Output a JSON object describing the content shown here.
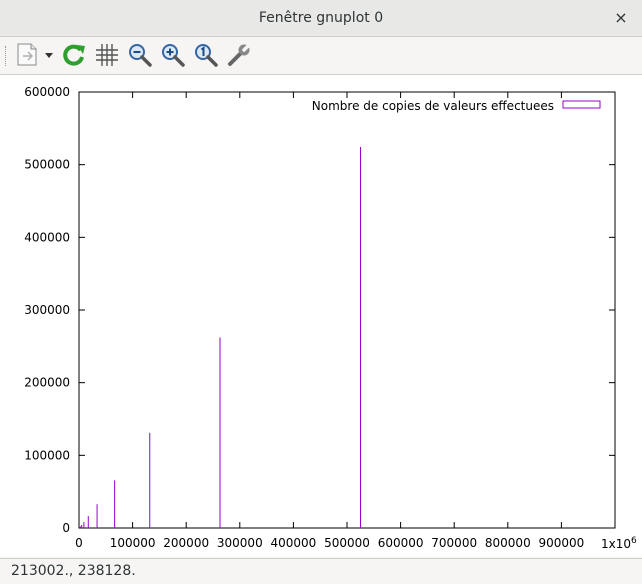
{
  "window": {
    "title": "Fenêtre gnuplot 0",
    "close_glyph": "×"
  },
  "toolbar": {
    "buttons": [
      {
        "name": "export-icon",
        "tooltip": "Export"
      },
      {
        "name": "replot-icon",
        "tooltip": "Replot"
      },
      {
        "name": "grid-icon",
        "tooltip": "Grid"
      },
      {
        "name": "zoom-out-icon",
        "tooltip": "Zoom out"
      },
      {
        "name": "zoom-in-icon",
        "tooltip": "Zoom in"
      },
      {
        "name": "zoom-reset-icon",
        "tooltip": "Zoom reset"
      },
      {
        "name": "settings-wrench-icon",
        "tooltip": "Settings"
      }
    ]
  },
  "status": {
    "text": "213002., 238128."
  },
  "colors": {
    "series": "#9400d3",
    "accent_green": "#2e9e2e"
  },
  "chart_data": {
    "type": "impulse",
    "title": "",
    "xlabel": "",
    "ylabel": "",
    "x_tick_labels": [
      "0",
      "100000",
      "200000",
      "300000",
      "400000",
      "500000",
      "600000",
      "700000",
      "800000",
      "900000"
    ],
    "x_multiplier_label": "1x10",
    "x_multiplier_exp": "6",
    "y_tick_labels": [
      "0",
      "100000",
      "200000",
      "300000",
      "400000",
      "500000",
      "600000"
    ],
    "xlim": [
      0,
      1000000
    ],
    "ylim": [
      0,
      600000
    ],
    "legend_position": "top-right",
    "series": [
      {
        "name": "Nombre de copies de valeurs effectuees",
        "x": [
          1024,
          2048,
          4096,
          8192,
          16384,
          32768,
          65536,
          131072,
          262144,
          524288
        ],
        "y": [
          1024,
          2048,
          4096,
          8192,
          16384,
          32768,
          65536,
          131072,
          262144,
          524288
        ]
      }
    ]
  }
}
